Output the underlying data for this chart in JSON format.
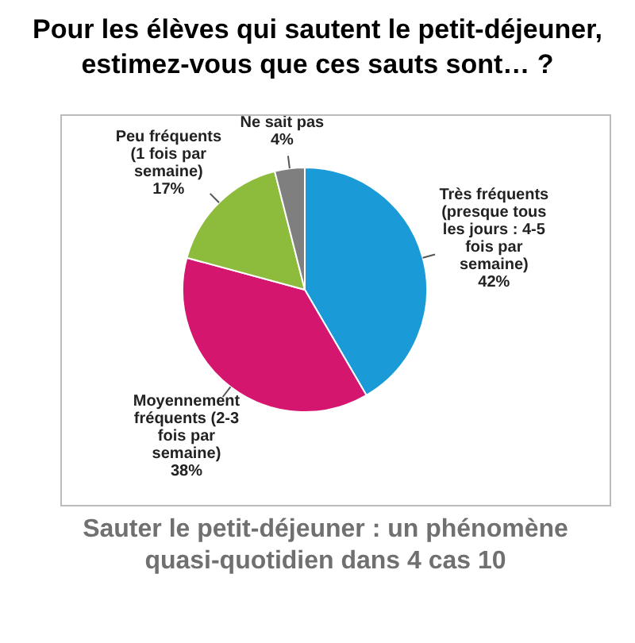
{
  "chart_data": {
    "type": "pie",
    "title": "Pour les élèves qui sautent le petit-déjeuner, estimez-vous que ces sauts sont… ?",
    "categories": [
      "Très fréquents (presque tous les jours : 4-5 fois par semaine)",
      "Moyennement fréquents (2-3 fois par semaine)",
      "Peu fréquents (1 fois par semaine)",
      "Ne sait pas"
    ],
    "values": [
      42,
      38,
      17,
      4
    ],
    "value_labels": [
      "42%",
      "38%",
      "17%",
      "4%"
    ],
    "colors": [
      "#1a9ad6",
      "#d4166f",
      "#8dbb3c",
      "#7f7f7f"
    ],
    "annotations": [
      "Sauter le petit-déjeuner : un phénomène quasi-quotidien dans 4 cas 10"
    ],
    "legend": false
  }
}
